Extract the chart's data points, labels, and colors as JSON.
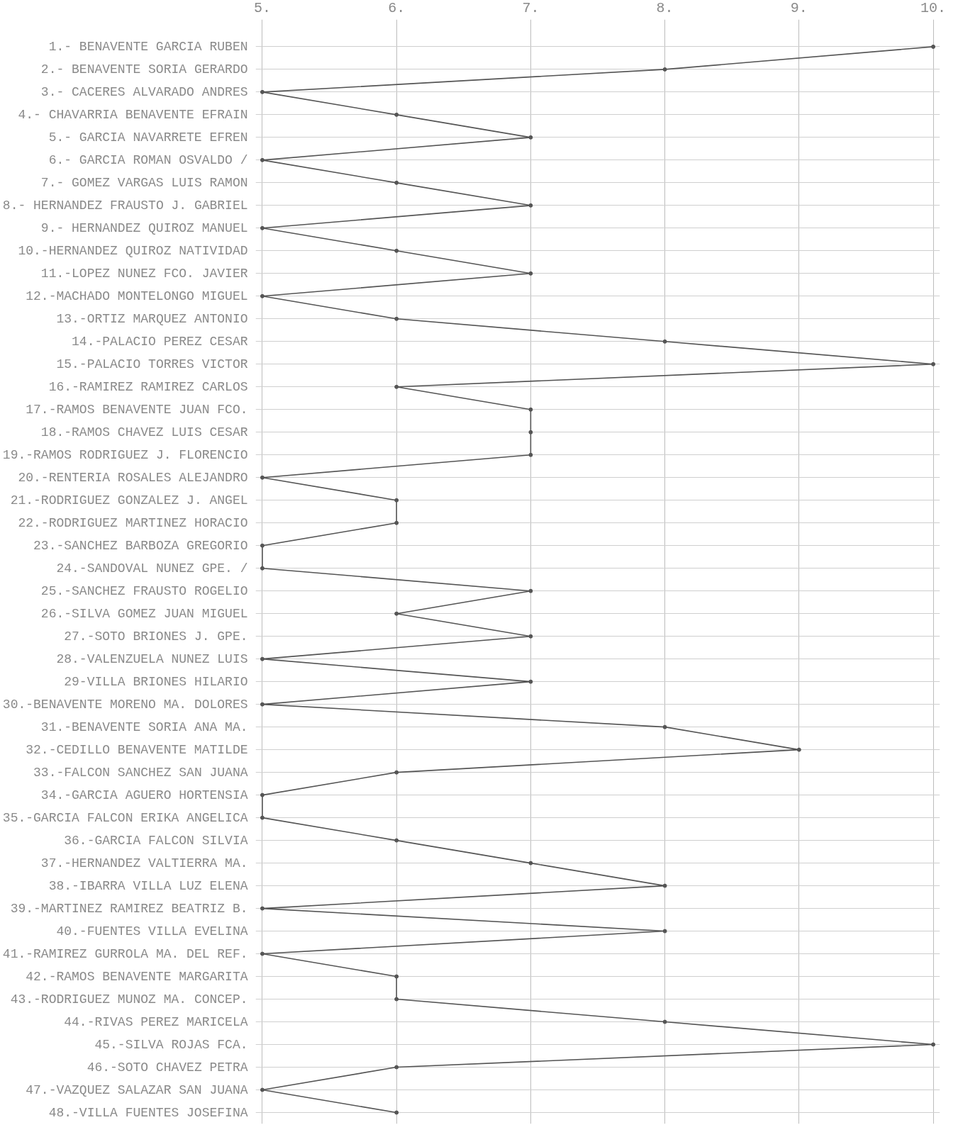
{
  "chart_data": {
    "type": "line",
    "orientation": "horizontal",
    "categories": [
      "1.- BENAVENTE GARCIA RUBEN",
      "2.- BENAVENTE SORIA GERARDO",
      "3.- CACERES ALVARADO ANDRES",
      "4.- CHAVARRIA BENAVENTE EFRAIN",
      "5.- GARCIA NAVARRETE EFREN",
      "6.- GARCIA ROMAN OSVALDO /",
      "7.- GOMEZ VARGAS LUIS RAMON",
      "8.- HERNANDEZ FRAUSTO J. GABRIEL",
      "9.- HERNANDEZ QUIROZ MANUEL",
      "10.-HERNANDEZ QUIROZ NATIVIDAD",
      "11.-LOPEZ NUNEZ FCO. JAVIER",
      "12.-MACHADO MONTELONGO MIGUEL",
      "13.-ORTIZ MARQUEZ ANTONIO",
      "14.-PALACIO PEREZ CESAR",
      "15.-PALACIO TORRES VICTOR",
      "16.-RAMIREZ RAMIREZ CARLOS",
      "17.-RAMOS BENAVENTE JUAN FCO.",
      "18.-RAMOS CHAVEZ LUIS CESAR",
      "19.-RAMOS RODRIGUEZ J. FLORENCIO",
      "20.-RENTERIA ROSALES ALEJANDRO",
      "21.-RODRIGUEZ GONZALEZ J. ANGEL",
      "22.-RODRIGUEZ MARTINEZ HORACIO",
      "23.-SANCHEZ BARBOZA GREGORIO",
      "24.-SANDOVAL NUNEZ GPE. /",
      "25.-SANCHEZ FRAUSTO ROGELIO",
      "26.-SILVA GOMEZ JUAN MIGUEL",
      "27.-SOTO BRIONES J. GPE.",
      "28.-VALENZUELA NUNEZ LUIS",
      "29-VILLA BRIONES HILARIO",
      "30.-BENAVENTE MORENO MA. DOLORES",
      "31.-BENAVENTE SORIA ANA MA.",
      "32.-CEDILLO BENAVENTE MATILDE",
      "33.-FALCON SANCHEZ SAN JUANA",
      "34.-GARCIA AGUERO HORTENSIA",
      "35.-GARCIA FALCON ERIKA ANGELICA",
      "36.-GARCIA FALCON SILVIA",
      "37.-HERNANDEZ VALTIERRA MA.",
      "38.-IBARRA VILLA LUZ ELENA",
      "39.-MARTINEZ RAMIREZ BEATRIZ B.",
      "40.-FUENTES VILLA EVELINA",
      "41.-RAMIREZ GURROLA MA. DEL REF.",
      "42.-RAMOS BENAVENTE MARGARITA",
      "43.-RODRIGUEZ MUNOZ MA. CONCEP.",
      "44.-RIVAS PEREZ MARICELA",
      "45.-SILVA ROJAS FCA.",
      "46.-SOTO CHAVEZ PETRA",
      "47.-VAZQUEZ SALAZAR SAN JUANA",
      "48.-VILLA FUENTES JOSEFINA"
    ],
    "values": [
      10,
      8,
      5,
      6,
      7,
      5,
      6,
      7,
      5,
      6,
      7,
      5,
      6,
      8,
      10,
      6,
      7,
      7,
      7,
      5,
      6,
      6,
      5,
      5,
      7,
      6,
      7,
      5,
      7,
      5,
      8,
      9,
      6,
      5,
      5,
      6,
      7,
      8,
      5,
      8,
      5,
      6,
      6,
      8,
      10,
      6,
      5,
      6
    ],
    "color": "#555555",
    "xlim": [
      5,
      10
    ],
    "xticks": [
      {
        "value": 5,
        "label": "5."
      },
      {
        "value": 6,
        "label": "6."
      },
      {
        "value": 7,
        "label": "7."
      },
      {
        "value": 8,
        "label": "8."
      },
      {
        "value": 9,
        "label": "9."
      },
      {
        "value": 10,
        "label": "10."
      }
    ],
    "grid": true,
    "marker": "circle",
    "line_style": "solid"
  }
}
